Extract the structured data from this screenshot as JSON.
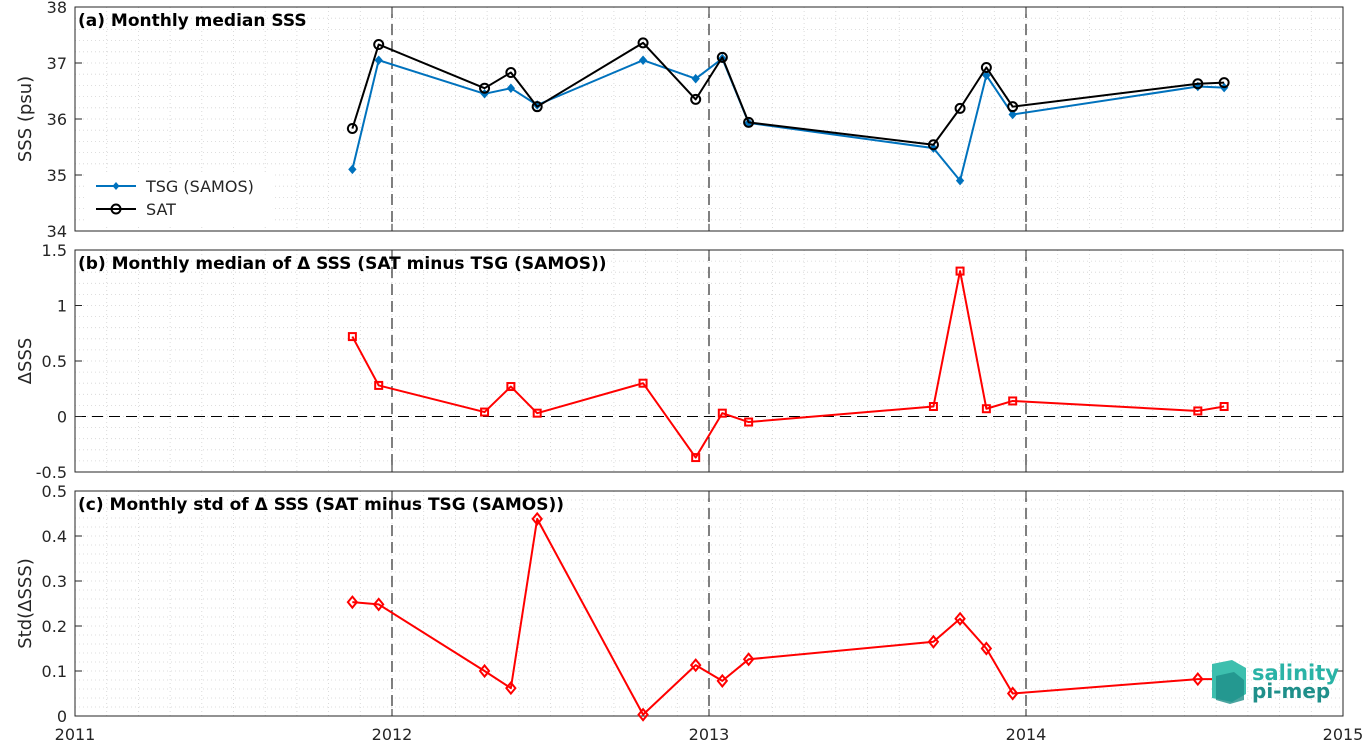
{
  "chart_data": [
    {
      "type": "line",
      "title": "(a) Monthly median SSS",
      "ylabel": "SSS (psu)",
      "xlim": [
        2011,
        2015
      ],
      "ylim": [
        34,
        38
      ],
      "yticks": [
        34,
        35,
        36,
        37,
        38
      ],
      "ytick_labels": [
        "34",
        "35",
        "36",
        "37",
        "38"
      ],
      "grid": true,
      "legend_position": "bottom-left",
      "series": [
        {
          "name": "TSG (SAMOS)",
          "color": "#0072bd",
          "marker": "filled-diamond",
          "x": [
            2011.875,
            2011.958,
            2012.292,
            2012.375,
            2012.458,
            2012.792,
            2012.958,
            2013.042,
            2013.125,
            2013.708,
            2013.792,
            2013.875,
            2013.958,
            2014.542,
            2014.625
          ],
          "y": [
            35.1,
            37.05,
            36.45,
            36.55,
            36.25,
            37.05,
            36.72,
            37.08,
            35.93,
            35.48,
            34.9,
            36.78,
            36.08,
            36.58,
            36.56
          ]
        },
        {
          "name": "SAT",
          "color": "#000000",
          "marker": "open-circle",
          "x": [
            2011.875,
            2011.958,
            2012.292,
            2012.375,
            2012.458,
            2012.792,
            2012.958,
            2013.042,
            2013.125,
            2013.708,
            2013.792,
            2013.875,
            2013.958,
            2014.542,
            2014.625
          ],
          "y": [
            35.83,
            37.33,
            36.55,
            36.83,
            36.22,
            37.36,
            36.35,
            37.1,
            35.94,
            35.54,
            36.19,
            36.92,
            36.22,
            36.63,
            36.65
          ]
        }
      ]
    },
    {
      "type": "line",
      "title": "(b) Monthly median of Δ SSS (SAT minus TSG (SAMOS))",
      "ylabel": "ΔSSS",
      "xlim": [
        2011,
        2015
      ],
      "ylim": [
        -0.5,
        1.5
      ],
      "yticks": [
        -0.5,
        0,
        0.5,
        1,
        1.5
      ],
      "ytick_labels": [
        "-0.5",
        "0",
        "0.5",
        "1",
        "1.5"
      ],
      "grid": true,
      "zero_line": true,
      "series": [
        {
          "color": "#ff0000",
          "marker": "open-square",
          "x": [
            2011.875,
            2011.958,
            2012.292,
            2012.375,
            2012.458,
            2012.792,
            2012.958,
            2013.042,
            2013.125,
            2013.708,
            2013.792,
            2013.875,
            2013.958,
            2014.542,
            2014.625
          ],
          "y": [
            0.72,
            0.28,
            0.04,
            0.27,
            0.03,
            0.3,
            -0.37,
            0.03,
            -0.05,
            0.09,
            1.31,
            0.07,
            0.14,
            0.05,
            0.09
          ]
        }
      ]
    },
    {
      "type": "line",
      "title": "(c) Monthly std of Δ SSS (SAT minus TSG (SAMOS))",
      "ylabel": "Std(ΔSSS)",
      "xlim": [
        2011,
        2015
      ],
      "ylim": [
        0,
        0.5
      ],
      "yticks": [
        0,
        0.1,
        0.2,
        0.3,
        0.4,
        0.5
      ],
      "ytick_labels": [
        "0",
        "0.1",
        "0.2",
        "0.3",
        "0.4",
        "0.5"
      ],
      "grid": true,
      "series": [
        {
          "color": "#ff0000",
          "marker": "open-diamond",
          "x": [
            2011.875,
            2011.958,
            2012.292,
            2012.375,
            2012.458,
            2012.792,
            2012.958,
            2013.042,
            2013.125,
            2013.708,
            2013.792,
            2013.875,
            2013.958,
            2014.542,
            2014.625
          ],
          "y": [
            0.253,
            0.248,
            0.1,
            0.062,
            0.438,
            0.003,
            0.113,
            0.078,
            0.126,
            0.165,
            0.216,
            0.15,
            0.05,
            0.082,
            0.082
          ]
        }
      ]
    }
  ],
  "x_axis": {
    "ticks": [
      2011,
      2012,
      2013,
      2014,
      2015
    ],
    "tick_labels": [
      "2011",
      "2012",
      "2013",
      "2014",
      "2015"
    ],
    "year_lines": [
      2012,
      2013,
      2014
    ]
  },
  "logo": {
    "line1": "salinity",
    "line2": "pi-mep"
  }
}
